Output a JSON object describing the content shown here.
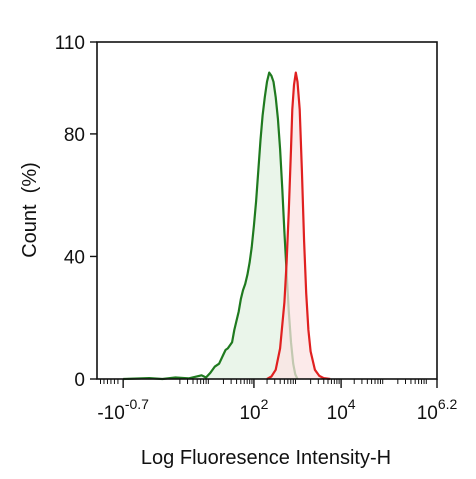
{
  "chart_data": {
    "type": "area",
    "title": "",
    "xlabel": "Log Fluoresence Intensity-H",
    "ylabel": "Count  (%)",
    "x_scale": "log",
    "xlim": [
      -1.6,
      6.2
    ],
    "ylim": [
      0,
      110
    ],
    "grid": false,
    "x_ticks": [
      {
        "base": "-10",
        "exp": "-0.7",
        "pos": -1.0
      },
      {
        "base": "10",
        "exp": "2",
        "pos": 2
      },
      {
        "base": "10",
        "exp": "4",
        "pos": 4
      },
      {
        "base": "10",
        "exp": "6.2",
        "pos": 6.2
      }
    ],
    "y_ticks": [
      {
        "label": "0",
        "value": 0
      },
      {
        "label": "40",
        "value": 40
      },
      {
        "label": "80",
        "value": 80
      },
      {
        "label": "110",
        "value": 110
      }
    ],
    "series": [
      {
        "color": "#1f7a1f",
        "fill": "#e3f1e3",
        "points": [
          [
            -1.0,
            0
          ],
          [
            -0.4,
            0.3
          ],
          [
            -0.1,
            0
          ],
          [
            0.2,
            0.5
          ],
          [
            0.5,
            0.2
          ],
          [
            0.8,
            1.2
          ],
          [
            0.9,
            0.5
          ],
          [
            1.0,
            2
          ],
          [
            1.1,
            4
          ],
          [
            1.2,
            5
          ],
          [
            1.3,
            8
          ],
          [
            1.35,
            9.5
          ],
          [
            1.4,
            10
          ],
          [
            1.5,
            12
          ],
          [
            1.55,
            16
          ],
          [
            1.6,
            19
          ],
          [
            1.65,
            22
          ],
          [
            1.7,
            26
          ],
          [
            1.75,
            29
          ],
          [
            1.8,
            31
          ],
          [
            1.85,
            34
          ],
          [
            1.9,
            38
          ],
          [
            1.95,
            43
          ],
          [
            2.0,
            50
          ],
          [
            2.05,
            58
          ],
          [
            2.1,
            68
          ],
          [
            2.15,
            78
          ],
          [
            2.2,
            86
          ],
          [
            2.25,
            92
          ],
          [
            2.3,
            97
          ],
          [
            2.35,
            100
          ],
          [
            2.4,
            99
          ],
          [
            2.45,
            97
          ],
          [
            2.5,
            92
          ],
          [
            2.55,
            85
          ],
          [
            2.6,
            75
          ],
          [
            2.65,
            62
          ],
          [
            2.7,
            48
          ],
          [
            2.75,
            35
          ],
          [
            2.8,
            22
          ],
          [
            2.85,
            12
          ],
          [
            2.9,
            5
          ],
          [
            2.95,
            1.5
          ],
          [
            3.0,
            0
          ]
        ]
      },
      {
        "color": "#e02020",
        "fill": "#fbe3e3",
        "points": [
          [
            2.3,
            0
          ],
          [
            2.4,
            0.8
          ],
          [
            2.5,
            3
          ],
          [
            2.6,
            10
          ],
          [
            2.7,
            25
          ],
          [
            2.75,
            38
          ],
          [
            2.8,
            55
          ],
          [
            2.85,
            75
          ],
          [
            2.88,
            88
          ],
          [
            2.92,
            96
          ],
          [
            2.96,
            100
          ],
          [
            3.0,
            97
          ],
          [
            3.05,
            88
          ],
          [
            3.1,
            68
          ],
          [
            3.15,
            45
          ],
          [
            3.2,
            28
          ],
          [
            3.25,
            16
          ],
          [
            3.3,
            9
          ],
          [
            3.4,
            3
          ],
          [
            3.5,
            1
          ],
          [
            3.6,
            0.3
          ],
          [
            3.75,
            0
          ]
        ]
      }
    ]
  }
}
